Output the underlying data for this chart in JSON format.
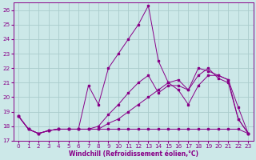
{
  "xlabel": "Windchill (Refroidissement éolien,°C)",
  "bg_color": "#cce8e8",
  "grid_color": "#aacccc",
  "line_color": "#880088",
  "xlim": [
    -0.5,
    23.5
  ],
  "ylim": [
    17,
    26.5
  ],
  "yticks": [
    17,
    18,
    19,
    20,
    21,
    22,
    23,
    24,
    25,
    26
  ],
  "xticks": [
    0,
    1,
    2,
    3,
    4,
    5,
    6,
    7,
    8,
    9,
    10,
    11,
    12,
    13,
    14,
    15,
    16,
    17,
    18,
    19,
    20,
    21,
    22,
    23
  ],
  "series1_x": [
    0,
    1,
    2,
    3,
    4,
    5,
    6,
    7,
    8,
    9,
    10,
    11,
    12,
    13,
    14,
    15,
    16,
    17,
    18,
    19,
    20,
    21,
    22,
    23
  ],
  "series1_y": [
    18.7,
    17.8,
    17.5,
    17.7,
    17.8,
    17.8,
    17.8,
    17.8,
    17.8,
    17.8,
    17.8,
    17.8,
    17.8,
    17.8,
    17.8,
    17.8,
    17.8,
    17.8,
    17.8,
    17.8,
    17.8,
    17.8,
    17.8,
    17.5
  ],
  "series2_x": [
    0,
    1,
    2,
    3,
    4,
    5,
    6,
    7,
    8,
    9,
    10,
    11,
    12,
    13,
    14,
    15,
    16,
    17,
    18,
    19,
    20,
    21,
    22,
    23
  ],
  "series2_y": [
    18.7,
    17.8,
    17.5,
    17.7,
    17.8,
    17.8,
    17.8,
    20.8,
    19.5,
    22.0,
    23.0,
    24.0,
    25.0,
    26.3,
    22.5,
    21.0,
    21.2,
    20.5,
    22.0,
    21.8,
    21.5,
    21.2,
    18.5,
    17.5
  ],
  "series3_x": [
    0,
    1,
    2,
    3,
    4,
    5,
    6,
    7,
    8,
    9,
    10,
    11,
    12,
    13,
    14,
    15,
    16,
    17,
    18,
    19,
    20,
    21,
    22,
    23
  ],
  "series3_y": [
    18.7,
    17.8,
    17.5,
    17.7,
    17.8,
    17.8,
    17.8,
    17.8,
    17.8,
    18.2,
    18.5,
    19.0,
    19.5,
    20.0,
    20.5,
    21.0,
    20.5,
    19.5,
    20.8,
    21.5,
    21.5,
    21.2,
    19.3,
    17.5
  ],
  "series4_x": [
    0,
    1,
    2,
    3,
    4,
    5,
    6,
    7,
    8,
    9,
    10,
    11,
    12,
    13,
    14,
    15,
    16,
    17,
    18,
    19,
    20,
    21,
    22,
    23
  ],
  "series4_y": [
    18.7,
    17.8,
    17.5,
    17.7,
    17.8,
    17.8,
    17.8,
    17.8,
    18.0,
    18.8,
    19.5,
    20.3,
    21.0,
    21.5,
    20.3,
    20.8,
    20.8,
    20.5,
    21.5,
    22.0,
    21.3,
    21.0,
    18.5,
    17.5
  ]
}
